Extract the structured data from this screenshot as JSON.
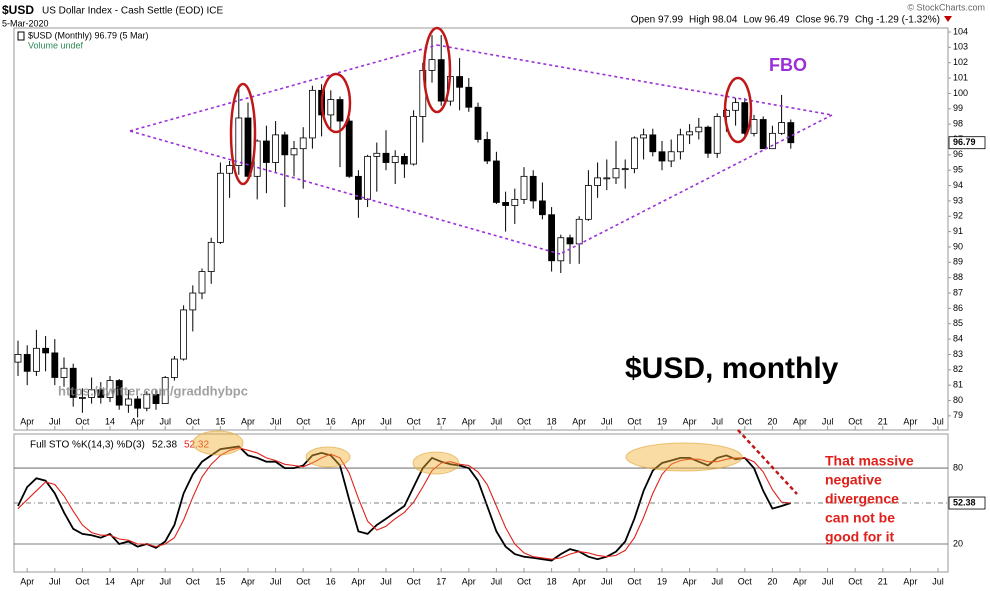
{
  "chart_data": {
    "type": "candlestick",
    "title": "$USD",
    "subtitle": "US Dollar Index - Cash Settle (EOD) ICE",
    "date": "5-Mar-2020",
    "quote": [
      "Open 97.99",
      "High 98.04",
      "Low 96.49",
      "Close 96.79",
      "Chg -1.29 (-1.32%)"
    ],
    "copyright": "© StockCharts.com",
    "legend": "$USD (Monthly) 96.79 (5 Mar)",
    "volume_note": "Volume undef",
    "annotations": {
      "main": "$USD, monthly",
      "fbo": "FBO",
      "watermark": "https://twitter.com/graddhybpc",
      "comment": [
        "That massive",
        "negative",
        "divergence",
        "can not be",
        "good for it"
      ]
    },
    "x": [
      "2013-03",
      "2013-04",
      "2013-05",
      "2013-06",
      "2013-07",
      "2013-08",
      "2013-09",
      "2013-10",
      "2013-11",
      "2013-12",
      "2014-01",
      "2014-02",
      "2014-03",
      "2014-04",
      "2014-05",
      "2014-06",
      "2014-07",
      "2014-08",
      "2014-09",
      "2014-10",
      "2014-11",
      "2014-12",
      "2015-01",
      "2015-02",
      "2015-03",
      "2015-04",
      "2015-05",
      "2015-06",
      "2015-07",
      "2015-08",
      "2015-09",
      "2015-10",
      "2015-11",
      "2015-12",
      "2016-01",
      "2016-02",
      "2016-03",
      "2016-04",
      "2016-05",
      "2016-06",
      "2016-07",
      "2016-08",
      "2016-09",
      "2016-10",
      "2016-11",
      "2016-12",
      "2017-01",
      "2017-02",
      "2017-03",
      "2017-04",
      "2017-05",
      "2017-06",
      "2017-07",
      "2017-08",
      "2017-09",
      "2017-10",
      "2017-11",
      "2017-12",
      "2018-01",
      "2018-02",
      "2018-03",
      "2018-04",
      "2018-05",
      "2018-06",
      "2018-07",
      "2018-08",
      "2018-09",
      "2018-10",
      "2018-11",
      "2018-12",
      "2019-01",
      "2019-02",
      "2019-03",
      "2019-04",
      "2019-05",
      "2019-06",
      "2019-07",
      "2019-08",
      "2019-09",
      "2019-10",
      "2019-11",
      "2019-12",
      "2020-01",
      "2020-02",
      "2020-03"
    ],
    "open": [
      82.5,
      83.0,
      81.9,
      83.4,
      83.1,
      81.5,
      82.1,
      80.2,
      80.2,
      80.7,
      80.2,
      81.3,
      79.7,
      80.1,
      79.5,
      80.4,
      79.8,
      81.5,
      82.7,
      85.9,
      87.0,
      88.4,
      90.3,
      94.8,
      95.3,
      98.4,
      94.6,
      96.9,
      95.5,
      97.3,
      96.0,
      96.4,
      97.1,
      100.2,
      98.6,
      99.6,
      98.2,
      94.6,
      93.1,
      95.9,
      96.1,
      95.5,
      95.9,
      95.4,
      98.5,
      101.5,
      102.2,
      99.5,
      101.1,
      100.4,
      99.1,
      97.0,
      95.6,
      92.9,
      92.7,
      93.1,
      94.6,
      93.0,
      92.1,
      89.1,
      90.6,
      90.2,
      91.8,
      94.0,
      94.5,
      94.5,
      95.1,
      95.1,
      97.1,
      97.3,
      96.2,
      95.6,
      96.2,
      97.3,
      97.5,
      97.8,
      96.1,
      98.5,
      98.9,
      99.4,
      97.4,
      98.3,
      96.4,
      97.4,
      98.1
    ],
    "high": [
      83.9,
      83.6,
      84.6,
      84.2,
      84.0,
      82.8,
      82.4,
      80.8,
      81.5,
      81.2,
      81.6,
      81.4,
      80.7,
      80.3,
      80.6,
      80.7,
      81.6,
      82.9,
      86.2,
      87.5,
      88.6,
      90.6,
      95.5,
      95.6,
      100.4,
      99.4,
      97.0,
      97.9,
      98.2,
      97.5,
      96.9,
      97.8,
      100.5,
      100.6,
      100.2,
      99.8,
      98.4,
      95.0,
      96.0,
      96.8,
      97.6,
      96.3,
      96.1,
      98.9,
      102.0,
      103.8,
      103.8,
      101.8,
      102.3,
      101.0,
      99.4,
      97.5,
      96.2,
      93.6,
      93.8,
      95.2,
      95.0,
      94.2,
      92.6,
      90.8,
      90.8,
      92.0,
      95.0,
      95.5,
      95.7,
      96.9,
      95.7,
      97.2,
      97.7,
      97.7,
      96.9,
      97.0,
      97.7,
      98.0,
      98.4,
      97.9,
      98.7,
      99.0,
      99.7,
      99.7,
      98.6,
      98.5,
      97.9,
      99.9,
      98.3
    ],
    "low": [
      81.6,
      81.0,
      81.6,
      81.9,
      81.0,
      80.9,
      79.6,
      79.2,
      79.8,
      79.8,
      79.9,
      79.4,
      79.2,
      78.9,
      79.3,
      79.4,
      79.8,
      81.3,
      82.6,
      84.5,
      86.6,
      87.6,
      90.2,
      93.2,
      94.7,
      94.4,
      93.1,
      93.5,
      94.9,
      92.6,
      94.6,
      93.8,
      96.4,
      97.2,
      97.7,
      95.2,
      94.5,
      91.9,
      92.6,
      93.6,
      95.0,
      94.1,
      94.5,
      95.3,
      96.8,
      100.7,
      99.2,
      99.2,
      98.9,
      98.8,
      96.8,
      95.4,
      92.8,
      91.0,
      91.5,
      92.8,
      92.5,
      91.8,
      88.4,
      88.3,
      88.9,
      88.9,
      91.7,
      93.2,
      93.7,
      94.1,
      93.8,
      94.8,
      95.7,
      95.9,
      95.0,
      95.2,
      95.7,
      96.7,
      97.0,
      95.8,
      95.8,
      97.5,
      97.9,
      97.1,
      97.2,
      96.4,
      96.4,
      97.3,
      96.4
    ],
    "close": [
      83.0,
      81.9,
      83.4,
      83.1,
      81.5,
      82.1,
      80.2,
      80.2,
      80.7,
      80.2,
      81.3,
      79.7,
      80.1,
      79.5,
      80.4,
      79.8,
      81.5,
      82.7,
      85.9,
      87.0,
      88.4,
      90.3,
      94.8,
      95.3,
      98.4,
      94.6,
      96.9,
      95.5,
      97.3,
      96.0,
      96.4,
      97.1,
      100.2,
      98.6,
      99.6,
      98.2,
      94.6,
      93.1,
      95.9,
      96.1,
      95.5,
      95.9,
      95.4,
      98.5,
      101.5,
      102.2,
      99.5,
      101.1,
      100.4,
      99.1,
      97.0,
      95.6,
      92.9,
      92.7,
      93.1,
      94.6,
      93.0,
      92.1,
      89.1,
      90.6,
      90.2,
      91.8,
      94.0,
      94.5,
      94.5,
      95.1,
      95.1,
      97.1,
      97.3,
      96.2,
      95.6,
      96.2,
      97.3,
      97.5,
      97.8,
      96.1,
      98.5,
      98.9,
      99.4,
      97.4,
      98.3,
      96.4,
      97.4,
      98.1,
      96.79
    ],
    "up_color": "#ffffff",
    "down_color": "#000000",
    "ylim": [
      78.08,
      104.26
    ],
    "yticks": [
      79,
      80,
      81,
      82,
      83,
      84,
      85,
      86,
      87,
      88,
      89,
      90,
      91,
      92,
      93,
      94,
      95,
      96,
      97,
      98,
      99,
      100,
      101,
      102,
      103,
      104
    ],
    "xticks": [
      {
        "value": "2013-04",
        "label": "Apr"
      },
      {
        "value": "2013-07",
        "label": "Jul"
      },
      {
        "value": "2013-10",
        "label": "Oct"
      },
      {
        "value": "2014-01",
        "label": "14"
      },
      {
        "value": "2014-04",
        "label": "Apr"
      },
      {
        "value": "2014-07",
        "label": "Jul"
      },
      {
        "value": "2014-10",
        "label": "Oct"
      },
      {
        "value": "2015-01",
        "label": "15"
      },
      {
        "value": "2015-04",
        "label": "Apr"
      },
      {
        "value": "2015-07",
        "label": "Jul"
      },
      {
        "value": "2015-10",
        "label": "Oct"
      },
      {
        "value": "2016-01",
        "label": "16"
      },
      {
        "value": "2016-04",
        "label": "Apr"
      },
      {
        "value": "2016-07",
        "label": "Jul"
      },
      {
        "value": "2016-10",
        "label": "Oct"
      },
      {
        "value": "2017-01",
        "label": "17"
      },
      {
        "value": "2017-04",
        "label": "Apr"
      },
      {
        "value": "2017-07",
        "label": "Jul"
      },
      {
        "value": "2017-10",
        "label": "Oct"
      },
      {
        "value": "2018-01",
        "label": "18"
      },
      {
        "value": "2018-04",
        "label": "Apr"
      },
      {
        "value": "2018-07",
        "label": "Jul"
      },
      {
        "value": "2018-10",
        "label": "Oct"
      },
      {
        "value": "2019-01",
        "label": "19"
      },
      {
        "value": "2019-04",
        "label": "Apr"
      },
      {
        "value": "2019-07",
        "label": "Jul"
      },
      {
        "value": "2019-10",
        "label": "Oct"
      },
      {
        "value": "2020-01",
        "label": "20"
      },
      {
        "value": "2020-04",
        "label": "Apr"
      },
      {
        "value": "2020-07",
        "label": "Jul"
      },
      {
        "value": "2020-10",
        "label": "Oct"
      },
      {
        "value": "2021-01",
        "label": "21"
      },
      {
        "value": "2021-04",
        "label": "Apr"
      },
      {
        "value": "2021-07",
        "label": "Jul"
      }
    ],
    "indicator": {
      "type": "line",
      "label": "Full STO %K(14,3) %D(3)",
      "ylim": [
        -2.1,
        106.9
      ],
      "yticks": [
        20,
        80
      ],
      "series": [
        {
          "color": "#000000",
          "values": [
            50,
            65,
            72,
            70,
            60,
            45,
            32,
            28,
            27,
            25,
            28,
            20,
            22,
            18,
            20,
            17,
            22,
            35,
            60,
            75,
            85,
            90,
            95,
            96,
            97,
            90,
            88,
            85,
            85,
            80,
            80,
            82,
            90,
            92,
            90,
            82,
            55,
            30,
            28,
            35,
            40,
            45,
            50,
            65,
            80,
            88,
            85,
            83,
            82,
            80,
            70,
            50,
            30,
            18,
            12,
            10,
            9,
            8,
            7,
            12,
            16,
            14,
            10,
            8,
            10,
            14,
            22,
            40,
            62,
            78,
            84,
            86,
            88,
            88,
            85,
            82,
            88,
            90,
            87,
            88,
            80,
            62,
            48,
            50,
            52.38
          ]
        },
        {
          "color": "#e0201b",
          "values": [
            48,
            55,
            62,
            69,
            67,
            58,
            46,
            35,
            29,
            27,
            27,
            24,
            23,
            20,
            20,
            18,
            20,
            25,
            39,
            57,
            73,
            83,
            90,
            94,
            96,
            94,
            92,
            88,
            86,
            83,
            82,
            81,
            84,
            88,
            91,
            88,
            76,
            56,
            38,
            31,
            34,
            40,
            45,
            53,
            65,
            78,
            84,
            85,
            83,
            82,
            77,
            67,
            50,
            33,
            20,
            13,
            10,
            9,
            8,
            9,
            12,
            14,
            13,
            11,
            10,
            11,
            15,
            25,
            41,
            60,
            75,
            83,
            86,
            87,
            87,
            85,
            85,
            87,
            88,
            88,
            85,
            77,
            63,
            53,
            52.32
          ]
        }
      ]
    }
  }
}
